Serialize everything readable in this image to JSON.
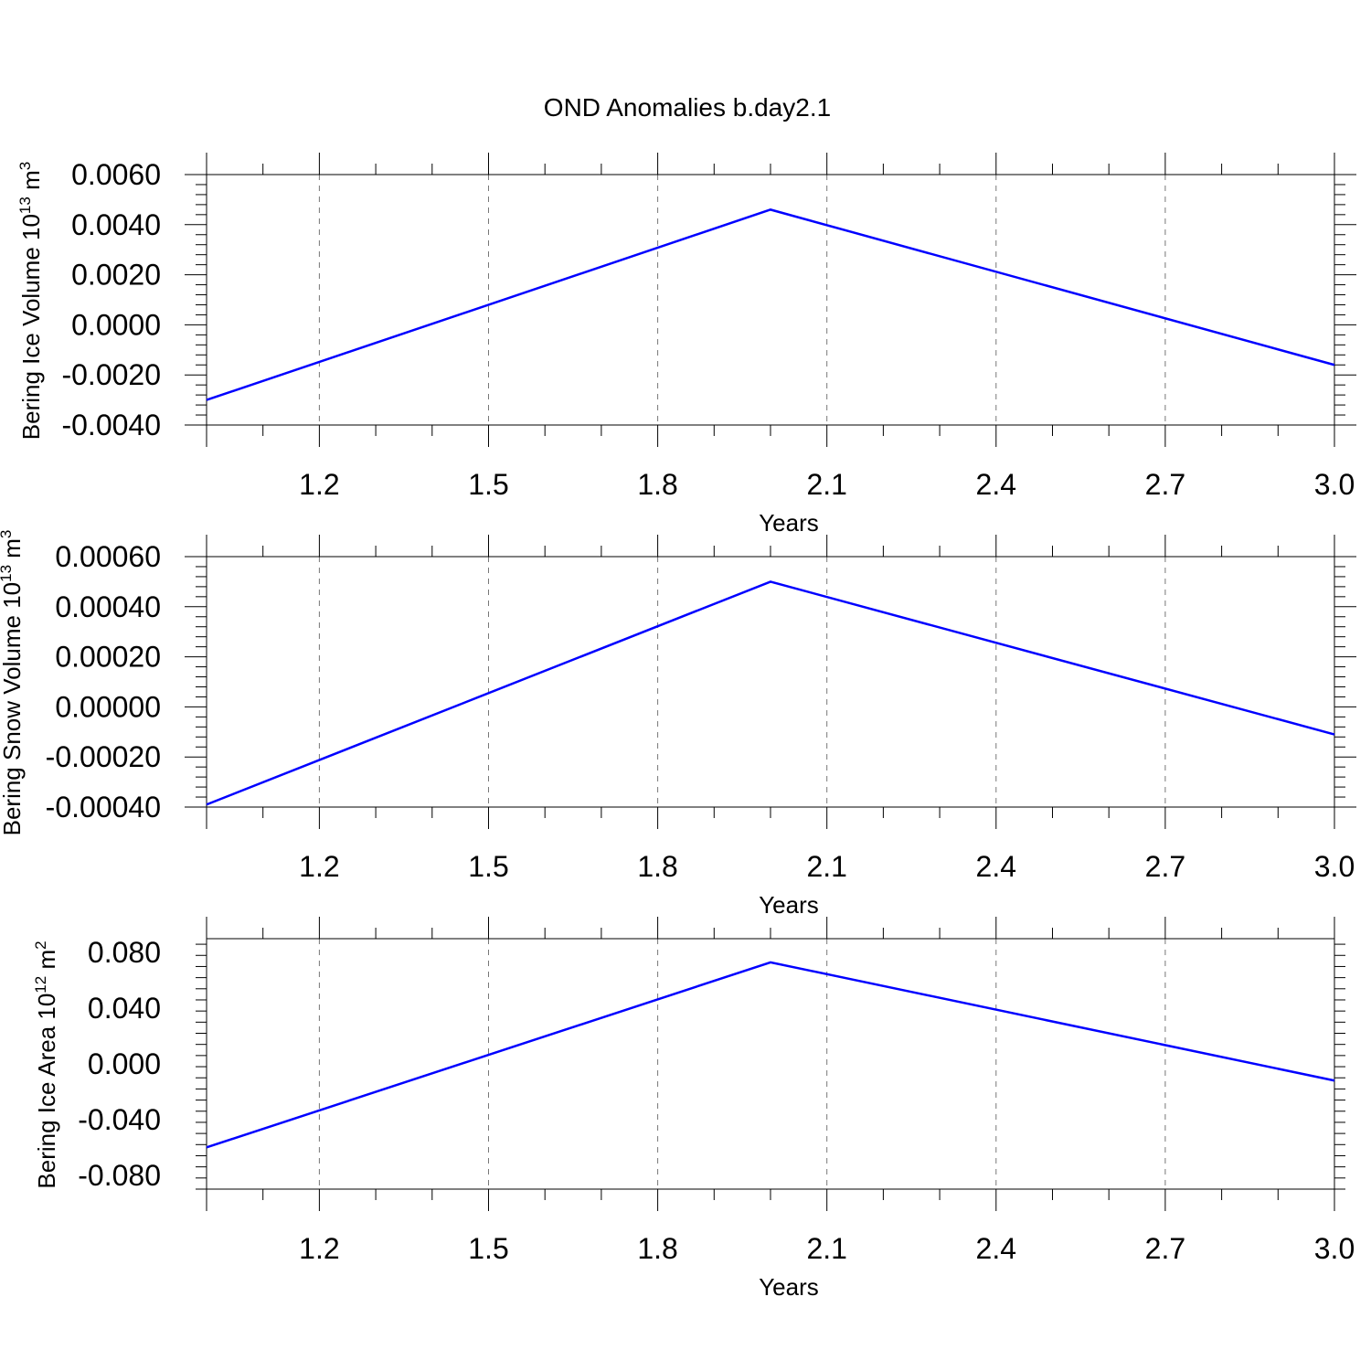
{
  "figure": {
    "title": "OND Anomalies b.day2.1",
    "line_color": "#0000ff"
  },
  "chart_data": [
    {
      "type": "line",
      "xlabel": "Years",
      "ylabel": {
        "text": "Bering Ice Volume 10",
        "exponent": "13",
        "unit": " m",
        "unit_exponent": "3"
      },
      "x": [
        1.0,
        2.0,
        3.0
      ],
      "y": [
        -0.003,
        0.0046,
        -0.0016
      ],
      "xlim": [
        1.0,
        3.0
      ],
      "ylim": [
        -0.004,
        0.006
      ],
      "xticks": [
        "1.2",
        "1.5",
        "1.8",
        "2.1",
        "2.4",
        "2.7",
        "3.0"
      ],
      "yticks": [
        "-0.0040",
        "-0.0020",
        "0.0000",
        "0.0020",
        "0.0040",
        "0.0060"
      ],
      "grid": "x-dashed"
    },
    {
      "type": "line",
      "xlabel": "Years",
      "ylabel": {
        "text": "Bering Snow Volume 10",
        "exponent": "13",
        "unit": " m",
        "unit_exponent": "3"
      },
      "x": [
        1.0,
        2.0,
        3.0
      ],
      "y": [
        -0.00039,
        0.0005,
        -0.00011
      ],
      "xlim": [
        1.0,
        3.0
      ],
      "ylim": [
        -0.0004,
        0.0006
      ],
      "xticks": [
        "1.2",
        "1.5",
        "1.8",
        "2.1",
        "2.4",
        "2.7",
        "3.0"
      ],
      "yticks": [
        "-0.00040",
        "-0.00020",
        "0.00000",
        "0.00020",
        "0.00040",
        "0.00060"
      ],
      "grid": "x-dashed"
    },
    {
      "type": "line",
      "xlabel": "Years",
      "ylabel": {
        "text": "Bering Ice Area 10",
        "exponent": "12",
        "unit": " m",
        "unit_exponent": "2"
      },
      "x": [
        1.0,
        2.0,
        3.0
      ],
      "y": [
        -0.06,
        0.073,
        -0.012
      ],
      "xlim": [
        1.0,
        3.0
      ],
      "ylim": [
        -0.09,
        0.09
      ],
      "xticks": [
        "1.2",
        "1.5",
        "1.8",
        "2.1",
        "2.4",
        "2.7",
        "3.0"
      ],
      "yticks": [
        "-0.080",
        "-0.040",
        "0.000",
        "0.040",
        "0.080"
      ],
      "grid": "x-dashed"
    }
  ]
}
